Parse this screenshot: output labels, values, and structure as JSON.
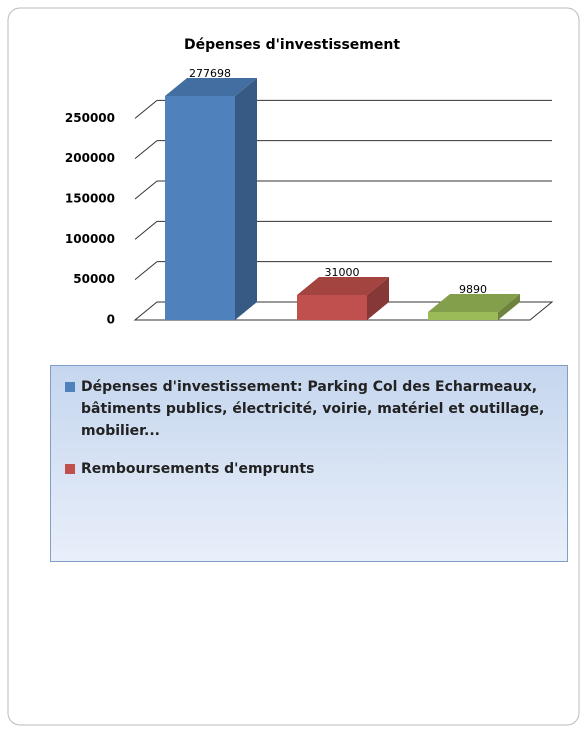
{
  "chart_data": {
    "type": "bar3d",
    "title": "Dépenses d'investissement",
    "values": [
      277698,
      31000,
      9890
    ],
    "colors": [
      "#4f81bd",
      "#c0504d",
      "#9bbb59"
    ],
    "legend": [
      {
        "name": "Dépenses d'investissement: Parking Col des Echarmeaux, bâtiments publics, électricité, voirie, matériel et outillage, mobilier...",
        "color": "#4f81bd"
      },
      {
        "name": "Remboursements d'emprunts",
        "color": "#c0504d"
      }
    ],
    "ylim": [
      0,
      300000
    ],
    "yticks": [
      0,
      50000,
      100000,
      150000,
      200000,
      250000
    ],
    "grid": true
  }
}
